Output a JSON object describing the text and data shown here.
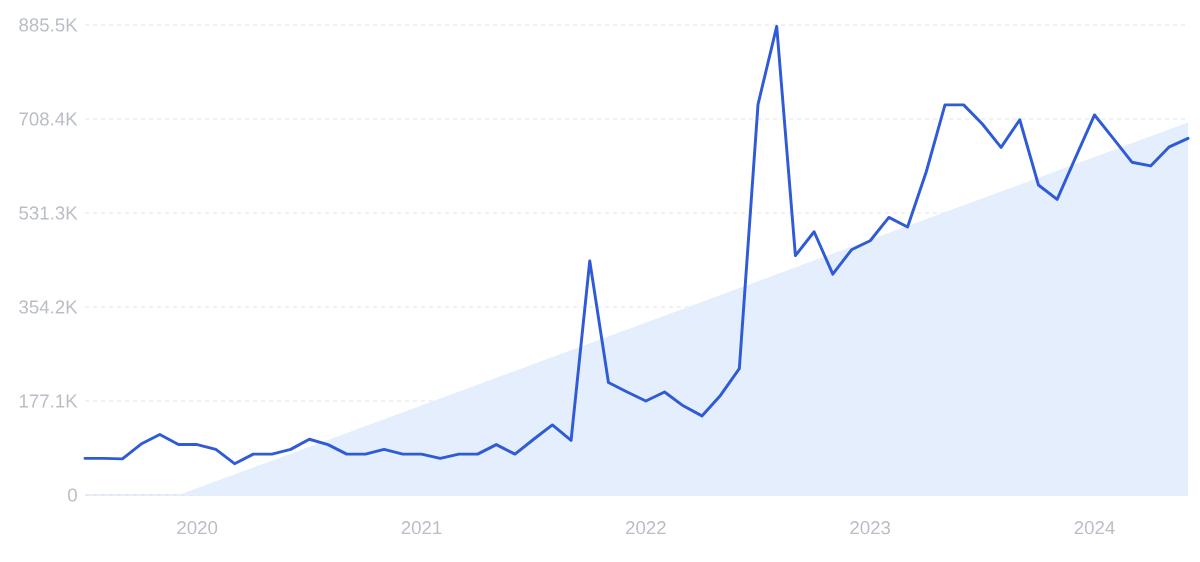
{
  "chart_data": {
    "type": "line",
    "x": [
      "2019-07",
      "2019-08",
      "2019-09",
      "2019-10",
      "2019-11",
      "2019-12",
      "2020-01",
      "2020-02",
      "2020-03",
      "2020-04",
      "2020-05",
      "2020-06",
      "2020-07",
      "2020-08",
      "2020-09",
      "2020-10",
      "2020-11",
      "2020-12",
      "2021-01",
      "2021-02",
      "2021-03",
      "2021-04",
      "2021-05",
      "2021-06",
      "2021-07",
      "2021-08",
      "2021-09",
      "2021-10",
      "2021-11",
      "2021-12",
      "2022-01",
      "2022-02",
      "2022-03",
      "2022-04",
      "2022-05",
      "2022-06",
      "2022-07",
      "2022-08",
      "2022-09",
      "2022-10",
      "2022-11",
      "2022-12",
      "2023-01",
      "2023-02",
      "2023-03",
      "2023-04",
      "2023-05",
      "2023-06",
      "2023-07",
      "2023-08",
      "2023-09",
      "2023-10",
      "2023-11",
      "2023-12",
      "2024-01",
      "2024-02",
      "2024-03",
      "2024-04",
      "2024-05",
      "2024-06"
    ],
    "series": [
      {
        "type": "area",
        "color": "#e4eefc",
        "x": [
          "2019-12",
          "2024-06"
        ],
        "values": [
          0,
          702
        ]
      },
      {
        "color": "#2f5bd6",
        "values": [
          69,
          69,
          68,
          96,
          114,
          95,
          95,
          86,
          59,
          77,
          77,
          86,
          105,
          95,
          77,
          77,
          86,
          77,
          77,
          69,
          77,
          77,
          95,
          77,
          105,
          132,
          103,
          441,
          212,
          194,
          177,
          194,
          168,
          149,
          188,
          238,
          736,
          883,
          451,
          496,
          416,
          462,
          479,
          523,
          505,
          609,
          735,
          735,
          699,
          655,
          707,
          584,
          557,
          637,
          716,
          672,
          627,
          620,
          656,
          672
        ]
      }
    ],
    "xlim": [
      "2019-07",
      "2024-06"
    ],
    "xticks": [
      {
        "value": "2020-01",
        "label": "2020"
      },
      {
        "value": "2021-01",
        "label": "2021"
      },
      {
        "value": "2022-01",
        "label": "2022"
      },
      {
        "value": "2023-01",
        "label": "2023"
      },
      {
        "value": "2024-01",
        "label": "2024"
      }
    ],
    "ylim": [
      0,
      885.5
    ],
    "yticks": [
      {
        "value": 0,
        "label": "0"
      },
      {
        "value": 177.1,
        "label": "177.1K"
      },
      {
        "value": 354.2,
        "label": "354.2K"
      },
      {
        "value": 531.3,
        "label": "531.3K"
      },
      {
        "value": 708.4,
        "label": "708.4K"
      },
      {
        "value": 885.5,
        "label": "885.5K"
      }
    ],
    "grid": "y",
    "marker": "none",
    "line_style": "solid"
  }
}
